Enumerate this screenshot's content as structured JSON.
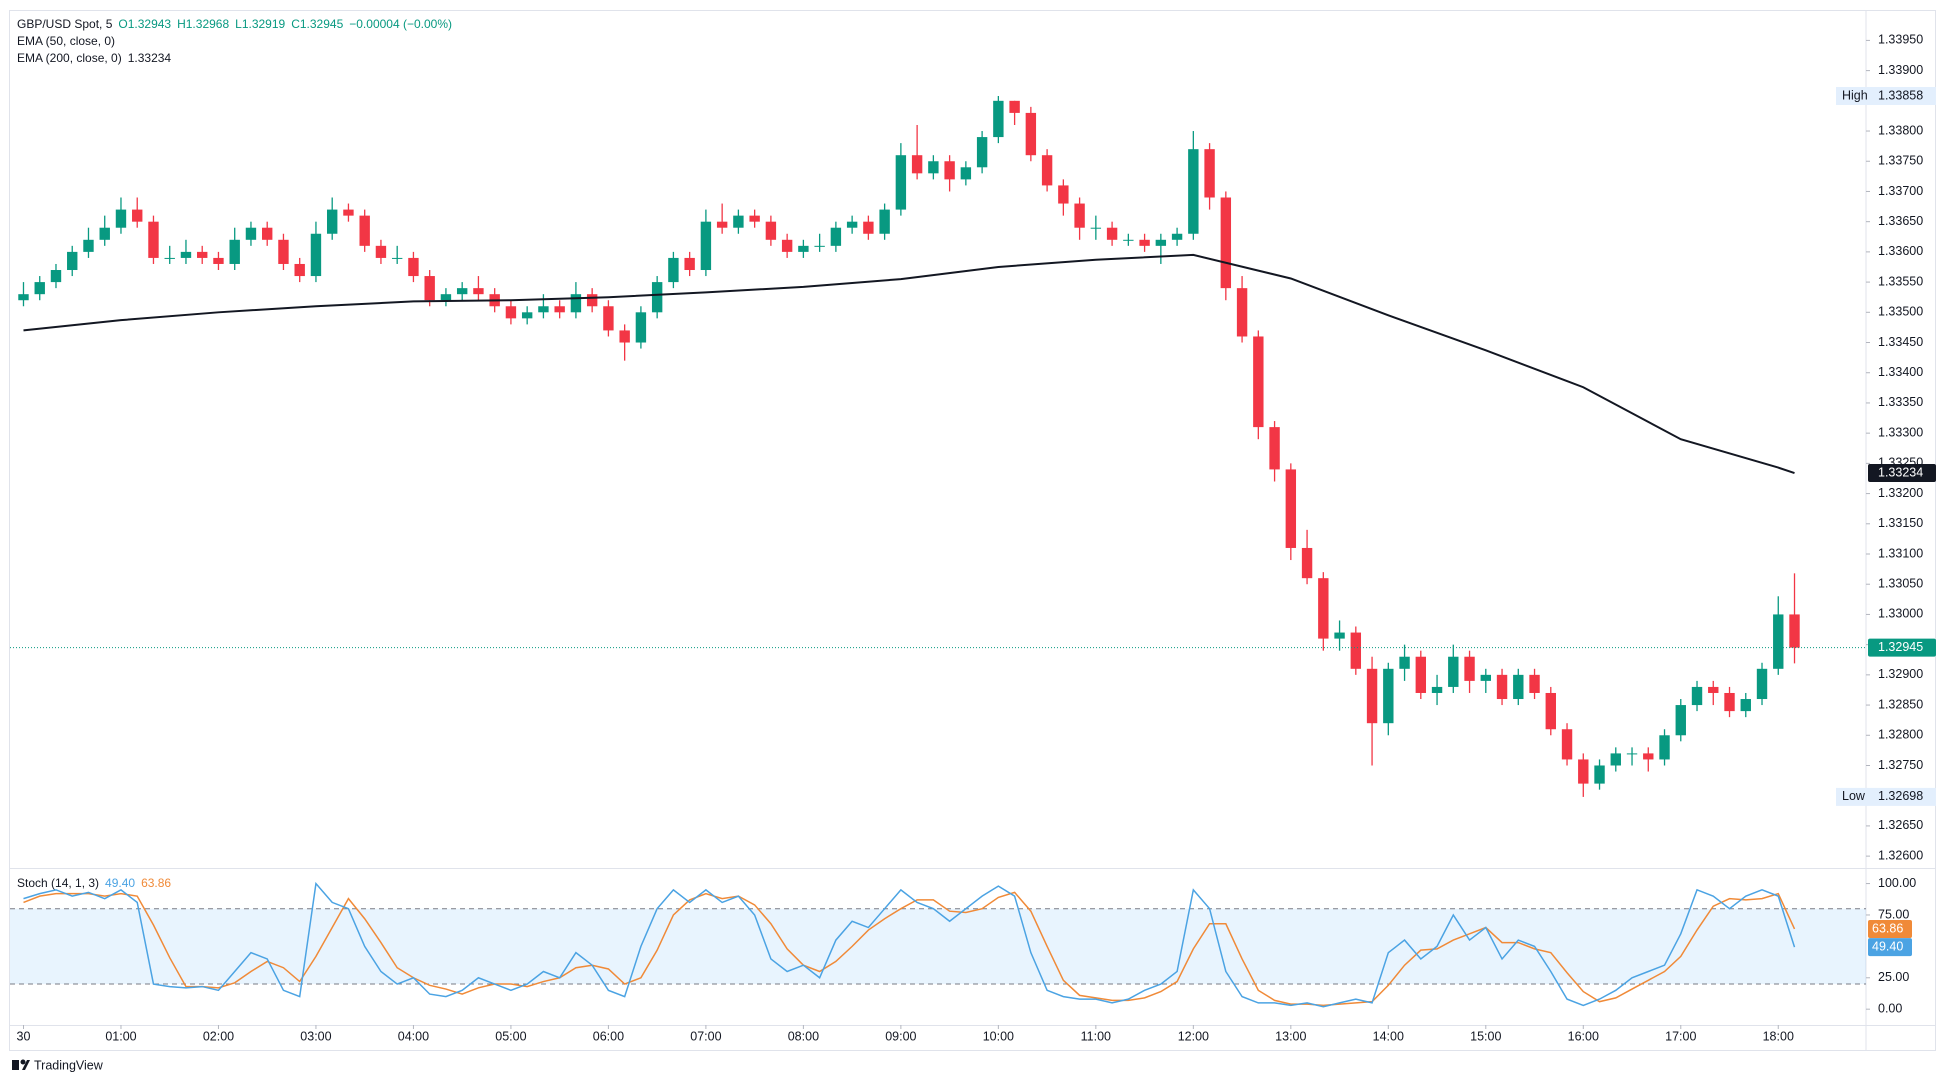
{
  "header": {
    "symbol": "GBP/USD Spot, 5",
    "ohlc": [
      "O1.32943",
      "H1.32968",
      "L1.32919",
      "C1.32945"
    ],
    "change": "−0.00004 (−0.00%)",
    "ema50_label": "EMA (50, close, 0)",
    "ema200_label": "EMA (200, close, 0)"
  },
  "chart_data": [
    {
      "type": "candlestick",
      "up_color": "#089981",
      "down_color": "#f23645",
      "xlim": [
        -0.83,
        113.4
      ],
      "xticks": [
        {
          "value": 0,
          "label": "30"
        },
        {
          "value": 6,
          "label": "01:00"
        },
        {
          "value": 12,
          "label": "02:00"
        },
        {
          "value": 18,
          "label": "03:00"
        },
        {
          "value": 24,
          "label": "04:00"
        },
        {
          "value": 30,
          "label": "05:00"
        },
        {
          "value": 36,
          "label": "06:00"
        },
        {
          "value": 42,
          "label": "07:00"
        },
        {
          "value": 48,
          "label": "08:00"
        },
        {
          "value": 54,
          "label": "09:00"
        },
        {
          "value": 60,
          "label": "10:00"
        },
        {
          "value": 66,
          "label": "11:00"
        },
        {
          "value": 72,
          "label": "12:00"
        },
        {
          "value": 78,
          "label": "13:00"
        },
        {
          "value": 84,
          "label": "14:00"
        },
        {
          "value": 90,
          "label": "15:00"
        },
        {
          "value": 96,
          "label": "16:00"
        },
        {
          "value": 102,
          "label": "17:00"
        },
        {
          "value": 108,
          "label": "18:00"
        }
      ],
      "ylim": [
        1.32582,
        1.33997
      ],
      "yticks": [
        {
          "value": 1.326,
          "label": "1.32600"
        },
        {
          "value": 1.3265,
          "label": "1.32650"
        },
        {
          "value": 1.327,
          "label": "1.32700"
        },
        {
          "value": 1.3275,
          "label": "1.32750"
        },
        {
          "value": 1.328,
          "label": "1.32800"
        },
        {
          "value": 1.3285,
          "label": "1.32850"
        },
        {
          "value": 1.329,
          "label": "1.32900"
        },
        {
          "value": 1.3295,
          "label": "1.32950"
        },
        {
          "value": 1.33,
          "label": "1.33000"
        },
        {
          "value": 1.3305,
          "label": "1.33050"
        },
        {
          "value": 1.331,
          "label": "1.33100"
        },
        {
          "value": 1.3315,
          "label": "1.33150"
        },
        {
          "value": 1.332,
          "label": "1.33200"
        },
        {
          "value": 1.3325,
          "label": "1.33250"
        },
        {
          "value": 1.333,
          "label": "1.33300"
        },
        {
          "value": 1.3335,
          "label": "1.33350"
        },
        {
          "value": 1.334,
          "label": "1.33400"
        },
        {
          "value": 1.3345,
          "label": "1.33450"
        },
        {
          "value": 1.335,
          "label": "1.33500"
        },
        {
          "value": 1.3355,
          "label": "1.33550"
        },
        {
          "value": 1.336,
          "label": "1.33600"
        },
        {
          "value": 1.3365,
          "label": "1.33650"
        },
        {
          "value": 1.337,
          "label": "1.33700"
        },
        {
          "value": 1.3375,
          "label": "1.33750"
        },
        {
          "value": 1.338,
          "label": "1.33800"
        },
        {
          "value": 1.3385,
          "label": "1.33850"
        },
        {
          "value": 1.339,
          "label": "1.33900"
        },
        {
          "value": 1.3395,
          "label": "1.33950"
        }
      ],
      "grid": false,
      "x": [
        0,
        1,
        2,
        3,
        4,
        5,
        6,
        7,
        8,
        9,
        10,
        11,
        12,
        13,
        14,
        15,
        16,
        17,
        18,
        19,
        20,
        21,
        22,
        23,
        24,
        25,
        26,
        27,
        28,
        29,
        30,
        31,
        32,
        33,
        34,
        35,
        36,
        37,
        38,
        39,
        40,
        41,
        42,
        43,
        44,
        45,
        46,
        47,
        48,
        49,
        50,
        51,
        52,
        53,
        54,
        55,
        56,
        57,
        58,
        59,
        60,
        61,
        62,
        63,
        64,
        65,
        66,
        67,
        68,
        69,
        70,
        71,
        72,
        73,
        74,
        75,
        76,
        77,
        78,
        79,
        80,
        81,
        82,
        83,
        84,
        85,
        86,
        87,
        88,
        89,
        90,
        91,
        92,
        93,
        94,
        95,
        96,
        97,
        98,
        99,
        100,
        101,
        102,
        103,
        104,
        105,
        106,
        107,
        108,
        109
      ],
      "open": [
        1.3352,
        1.3353,
        1.3355,
        1.3357,
        1.336,
        1.3362,
        1.3364,
        1.3367,
        1.3365,
        1.3359,
        1.3359,
        1.336,
        1.3359,
        1.3358,
        1.3362,
        1.3364,
        1.3362,
        1.3358,
        1.3356,
        1.3363,
        1.3367,
        1.3366,
        1.3361,
        1.3359,
        1.3359,
        1.3356,
        1.3352,
        1.3353,
        1.3354,
        1.3353,
        1.3351,
        1.3349,
        1.335,
        1.3351,
        1.335,
        1.3353,
        1.3351,
        1.3347,
        1.3345,
        1.335,
        1.3355,
        1.3359,
        1.3357,
        1.3365,
        1.3364,
        1.3366,
        1.3365,
        1.3362,
        1.336,
        1.3361,
        1.3361,
        1.3364,
        1.3365,
        1.3363,
        1.3367,
        1.3376,
        1.3373,
        1.3375,
        1.3372,
        1.3374,
        1.3379,
        1.3385,
        1.3383,
        1.3376,
        1.3371,
        1.3368,
        1.3364,
        1.3364,
        1.3362,
        1.3362,
        1.3361,
        1.3362,
        1.3363,
        1.3377,
        1.3369,
        1.3354,
        1.3346,
        1.3331,
        1.3324,
        1.3311,
        1.3306,
        1.3296,
        1.3297,
        1.3291,
        1.3282,
        1.3291,
        1.3293,
        1.3287,
        1.3288,
        1.3293,
        1.3289,
        1.329,
        1.3286,
        1.329,
        1.3287,
        1.3281,
        1.3276,
        1.3272,
        1.3275,
        1.3277,
        1.3277,
        1.3276,
        1.328,
        1.3285,
        1.3288,
        1.3287,
        1.3284,
        1.3286,
        1.3291,
        1.33
      ],
      "high": [
        1.3355,
        1.3356,
        1.3358,
        1.3361,
        1.3364,
        1.3366,
        1.3369,
        1.3369,
        1.3366,
        1.3361,
        1.3362,
        1.3361,
        1.336,
        1.3364,
        1.3365,
        1.3365,
        1.3363,
        1.3359,
        1.3365,
        1.3369,
        1.3368,
        1.3367,
        1.3362,
        1.3361,
        1.336,
        1.3357,
        1.3354,
        1.3355,
        1.3356,
        1.3354,
        1.3352,
        1.3351,
        1.3353,
        1.3352,
        1.3355,
        1.3354,
        1.3352,
        1.3348,
        1.3351,
        1.3356,
        1.336,
        1.336,
        1.3367,
        1.3368,
        1.3367,
        1.3367,
        1.3366,
        1.3363,
        1.3362,
        1.3363,
        1.3365,
        1.3366,
        1.3366,
        1.3368,
        1.3378,
        1.3381,
        1.3376,
        1.3376,
        1.3375,
        1.338,
        1.33858,
        1.3385,
        1.3384,
        1.3377,
        1.3372,
        1.3369,
        1.3366,
        1.3365,
        1.3363,
        1.3363,
        1.3363,
        1.3364,
        1.338,
        1.3378,
        1.337,
        1.3356,
        1.3347,
        1.3332,
        1.3325,
        1.3314,
        1.3307,
        1.3299,
        1.3298,
        1.3293,
        1.3292,
        1.3295,
        1.3294,
        1.329,
        1.3295,
        1.3294,
        1.3291,
        1.3291,
        1.3291,
        1.3291,
        1.3288,
        1.3282,
        1.3277,
        1.3276,
        1.3278,
        1.3278,
        1.3278,
        1.3281,
        1.3286,
        1.3289,
        1.3289,
        1.3288,
        1.3287,
        1.3292,
        1.3303,
        1.33068
      ],
      "low": [
        1.3351,
        1.3352,
        1.3354,
        1.3356,
        1.3359,
        1.3361,
        1.3363,
        1.3364,
        1.3358,
        1.3358,
        1.3358,
        1.3358,
        1.3357,
        1.3357,
        1.3361,
        1.3361,
        1.3357,
        1.3355,
        1.3355,
        1.3362,
        1.3365,
        1.336,
        1.3358,
        1.3358,
        1.3355,
        1.3351,
        1.3351,
        1.3352,
        1.3352,
        1.335,
        1.3348,
        1.3348,
        1.3349,
        1.3349,
        1.3349,
        1.335,
        1.3346,
        1.3342,
        1.3344,
        1.3349,
        1.3354,
        1.3356,
        1.3356,
        1.3363,
        1.3363,
        1.3364,
        1.3361,
        1.3359,
        1.3359,
        1.336,
        1.336,
        1.3363,
        1.3362,
        1.3362,
        1.3366,
        1.3372,
        1.3372,
        1.337,
        1.3371,
        1.3373,
        1.3378,
        1.3381,
        1.3375,
        1.337,
        1.3366,
        1.3362,
        1.3362,
        1.3361,
        1.3361,
        1.336,
        1.3358,
        1.3361,
        1.3362,
        1.3367,
        1.3352,
        1.3345,
        1.3329,
        1.3322,
        1.3309,
        1.3305,
        1.3294,
        1.3294,
        1.329,
        1.3275,
        1.328,
        1.3289,
        1.3286,
        1.3285,
        1.3287,
        1.3287,
        1.3287,
        1.3285,
        1.3285,
        1.3286,
        1.328,
        1.3275,
        1.32698,
        1.3271,
        1.3274,
        1.3275,
        1.3274,
        1.3275,
        1.3279,
        1.3284,
        1.3285,
        1.3283,
        1.3283,
        1.3285,
        1.329,
        1.32919
      ],
      "close": [
        1.3353,
        1.3355,
        1.3357,
        1.336,
        1.3362,
        1.3364,
        1.3367,
        1.3365,
        1.3359,
        1.3359,
        1.336,
        1.3359,
        1.3358,
        1.3362,
        1.3364,
        1.3362,
        1.3358,
        1.3356,
        1.3363,
        1.3367,
        1.3366,
        1.3361,
        1.3359,
        1.3359,
        1.3356,
        1.3352,
        1.3353,
        1.3354,
        1.3353,
        1.3351,
        1.3349,
        1.335,
        1.3351,
        1.335,
        1.3353,
        1.3351,
        1.3347,
        1.3345,
        1.335,
        1.3355,
        1.3359,
        1.3357,
        1.3365,
        1.3364,
        1.3366,
        1.3365,
        1.3362,
        1.336,
        1.3361,
        1.3361,
        1.3364,
        1.3365,
        1.3363,
        1.3367,
        1.3376,
        1.3373,
        1.3375,
        1.3372,
        1.3374,
        1.3379,
        1.3385,
        1.3383,
        1.3376,
        1.3371,
        1.3368,
        1.3364,
        1.3364,
        1.3362,
        1.3362,
        1.3361,
        1.3362,
        1.3363,
        1.3377,
        1.3369,
        1.3354,
        1.3346,
        1.3331,
        1.3324,
        1.3311,
        1.3306,
        1.3296,
        1.3297,
        1.3291,
        1.3282,
        1.3291,
        1.3293,
        1.3287,
        1.3288,
        1.3293,
        1.3289,
        1.329,
        1.3286,
        1.329,
        1.3287,
        1.3281,
        1.3276,
        1.3272,
        1.3275,
        1.3277,
        1.3277,
        1.3276,
        1.328,
        1.3285,
        1.3288,
        1.3287,
        1.3284,
        1.3286,
        1.3291,
        1.33,
        1.32945
      ],
      "ema": {
        "color": "#131722",
        "x": [
          0,
          6,
          12,
          18,
          24,
          30,
          36,
          42,
          48,
          54,
          60,
          66,
          72,
          78,
          84,
          90,
          96,
          102,
          108,
          109
        ],
        "values": [
          1.3347,
          1.33487,
          1.335,
          1.3351,
          1.33518,
          1.3352,
          1.33525,
          1.33533,
          1.33542,
          1.33555,
          1.33575,
          1.33587,
          1.33595,
          1.33556,
          1.33495,
          1.33437,
          1.33376,
          1.3329,
          1.33243,
          1.33234
        ]
      },
      "high_marker": {
        "label": "High",
        "value": 1.33858
      },
      "low_marker": {
        "label": "Low",
        "value": 1.32698
      }
    },
    {
      "type": "stochastic",
      "title": "Stoch (14, 1, 3)",
      "ylim": [
        -11.8,
        110.8
      ],
      "yticks": [
        {
          "value": 0,
          "label": "0.00"
        },
        {
          "value": 25,
          "label": "25.00"
        },
        {
          "value": 75,
          "label": "75.00"
        },
        {
          "value": 100,
          "label": "100.00"
        }
      ],
      "bands": [
        20,
        80
      ],
      "band_color": "#2196f3",
      "series": [
        {
          "color": "#4ba3e3",
          "last_label": "49.40",
          "values": [
            88,
            92,
            95,
            90,
            93,
            88,
            95,
            85,
            20,
            18,
            17,
            18,
            15,
            30,
            45,
            40,
            15,
            10,
            100,
            85,
            80,
            50,
            30,
            20,
            25,
            12,
            10,
            15,
            25,
            20,
            15,
            20,
            30,
            25,
            45,
            35,
            15,
            10,
            50,
            80,
            95,
            85,
            95,
            85,
            90,
            75,
            40,
            30,
            35,
            25,
            55,
            70,
            65,
            80,
            95,
            85,
            80,
            70,
            80,
            90,
            98,
            90,
            45,
            15,
            10,
            8,
            8,
            5,
            8,
            15,
            20,
            30,
            95,
            80,
            30,
            10,
            5,
            5,
            3,
            5,
            2,
            5,
            8,
            5,
            45,
            55,
            40,
            50,
            75,
            55,
            65,
            40,
            55,
            50,
            30,
            8,
            3,
            8,
            15,
            25,
            30,
            35,
            60,
            95,
            90,
            80,
            90,
            95,
            90,
            49.4
          ]
        },
        {
          "color": "#f08a38",
          "last_label": "63.86",
          "values": [
            85,
            90,
            92,
            92,
            92,
            90,
            92,
            90,
            67,
            41,
            18,
            18,
            17,
            21,
            30,
            38,
            33,
            22,
            42,
            65,
            88,
            72,
            53,
            33,
            25,
            19,
            16,
            12,
            17,
            20,
            20,
            18,
            22,
            25,
            33,
            35,
            32,
            20,
            25,
            47,
            75,
            87,
            92,
            88,
            90,
            83,
            68,
            48,
            35,
            30,
            38,
            50,
            63,
            72,
            80,
            87,
            87,
            78,
            77,
            80,
            89,
            93,
            78,
            50,
            23,
            11,
            9,
            7,
            7,
            9,
            14,
            22,
            48,
            68,
            68,
            40,
            15,
            7,
            4,
            4,
            3,
            4,
            5,
            6,
            19,
            35,
            47,
            48,
            55,
            60,
            65,
            53,
            53,
            48,
            45,
            29,
            14,
            6,
            9,
            16,
            23,
            30,
            42,
            63,
            82,
            88,
            87,
            88,
            92,
            63.86
          ]
        }
      ]
    }
  ],
  "footer": {
    "brand": "TradingView"
  }
}
